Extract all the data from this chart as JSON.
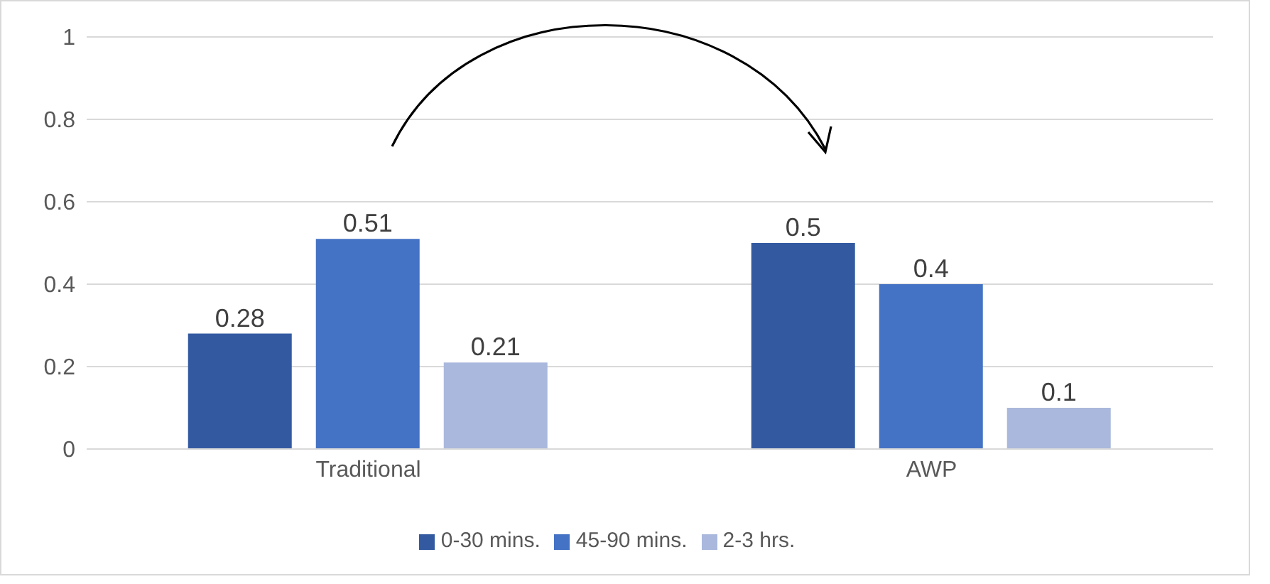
{
  "chart_data": {
    "type": "bar",
    "categories": [
      "Traditional",
      "AWP"
    ],
    "series": [
      {
        "name": "0-30 mins.",
        "color": "#335aa1",
        "values": [
          0.28,
          0.5
        ]
      },
      {
        "name": "45-90 mins.",
        "color": "#4472c4",
        "values": [
          0.51,
          0.4
        ]
      },
      {
        "name": "2-3 hrs.",
        "color": "#a9b8dc",
        "values": [
          0.21,
          0.1
        ]
      }
    ],
    "ylim": [
      0,
      1
    ],
    "yticks": [
      0,
      0.2,
      0.4,
      0.6,
      0.8,
      1
    ],
    "grid": "y",
    "legend": "bottom",
    "data_labels": true
  }
}
